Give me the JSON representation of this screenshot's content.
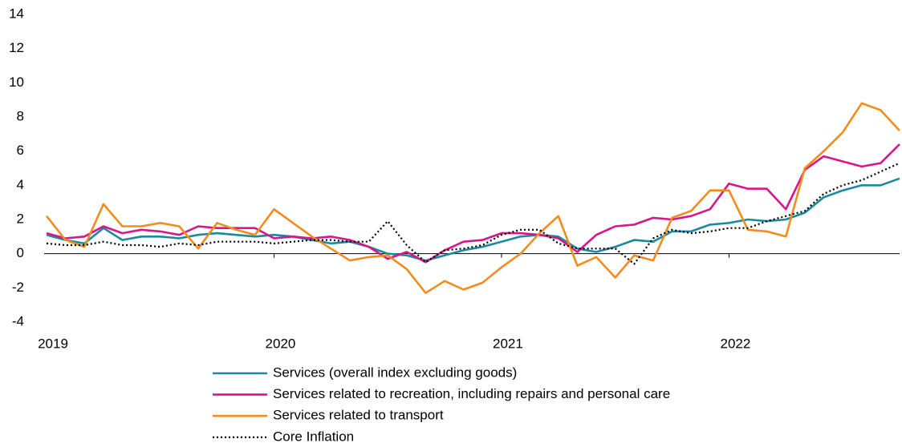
{
  "chart_data": {
    "type": "line",
    "categories": [
      "2019",
      null,
      null,
      null,
      null,
      null,
      null,
      null,
      null,
      null,
      null,
      null,
      "2020",
      null,
      null,
      null,
      null,
      null,
      null,
      null,
      null,
      null,
      null,
      null,
      "2021",
      null,
      null,
      null,
      null,
      null,
      null,
      null,
      null,
      null,
      null,
      null,
      "2022",
      null,
      null,
      null,
      null,
      null,
      null,
      null,
      null,
      null
    ],
    "ylim": [
      -4,
      14
    ],
    "yticks": [
      -4,
      -2,
      0,
      2,
      4,
      6,
      8,
      10,
      12,
      14
    ],
    "grid": false,
    "legend": "bottom",
    "series": [
      {
        "name": "Services (overall index excluding goods)",
        "color": "#1a8aa0",
        "dash": "solid",
        "values": [
          1.1,
          0.8,
          0.6,
          1.5,
          0.8,
          1.0,
          1.0,
          0.9,
          1.1,
          1.2,
          1.1,
          1.0,
          1.1,
          1.0,
          0.8,
          0.6,
          0.7,
          0.4,
          0.0,
          -0.1,
          -0.4,
          -0.1,
          0.2,
          0.4,
          0.7,
          1.0,
          1.1,
          1.0,
          0.3,
          0.1,
          0.4,
          0.8,
          0.7,
          1.3,
          1.3,
          1.7,
          1.8,
          2.0,
          1.9,
          2.0,
          2.4,
          3.3,
          3.7,
          4.0,
          4.0,
          4.4
        ]
      },
      {
        "name": "Services related to recreation, including repairs and personal care",
        "color": "#d6168a",
        "dash": "solid",
        "values": [
          1.2,
          0.9,
          1.0,
          1.6,
          1.2,
          1.4,
          1.3,
          1.1,
          1.6,
          1.5,
          1.5,
          1.5,
          0.9,
          1.0,
          0.9,
          1.0,
          0.8,
          0.4,
          -0.3,
          0.1,
          -0.5,
          0.2,
          0.7,
          0.8,
          1.2,
          1.2,
          1.1,
          0.9,
          0.1,
          1.1,
          1.6,
          1.7,
          2.1,
          2.0,
          2.2,
          2.6,
          4.1,
          3.8,
          3.8,
          2.6,
          4.9,
          5.7,
          5.4,
          5.1,
          5.3,
          6.4
        ]
      },
      {
        "name": "Services related to transport",
        "color": "#f28c1e",
        "dash": "solid",
        "values": [
          2.2,
          0.8,
          0.4,
          2.9,
          1.6,
          1.6,
          1.8,
          1.6,
          0.3,
          1.8,
          1.4,
          1.1,
          2.6,
          1.8,
          1.0,
          0.3,
          -0.4,
          -0.2,
          -0.1,
          -0.9,
          -2.3,
          -1.6,
          -2.1,
          -1.7,
          -0.8,
          0.0,
          1.2,
          2.2,
          -0.7,
          -0.2,
          -1.4,
          -0.1,
          -0.4,
          2.1,
          2.5,
          3.7,
          3.7,
          1.4,
          1.3,
          1.0,
          5.0,
          6.0,
          7.1,
          8.8,
          8.4,
          7.2
        ]
      },
      {
        "name": "Core Inflation",
        "color": "#000000",
        "dash": "dotted",
        "values": [
          0.6,
          0.5,
          0.5,
          0.7,
          0.5,
          0.5,
          0.4,
          0.6,
          0.5,
          0.7,
          0.7,
          0.7,
          0.6,
          0.7,
          0.8,
          0.8,
          0.7,
          0.7,
          1.9,
          0.5,
          -0.5,
          0.2,
          0.3,
          0.5,
          1.1,
          1.4,
          1.4,
          0.6,
          0.3,
          0.3,
          0.3,
          -0.6,
          0.9,
          1.4,
          1.2,
          1.3,
          1.5,
          1.5,
          1.9,
          2.2,
          2.5,
          3.5,
          4.0,
          4.3,
          4.8,
          5.3
        ]
      }
    ]
  }
}
